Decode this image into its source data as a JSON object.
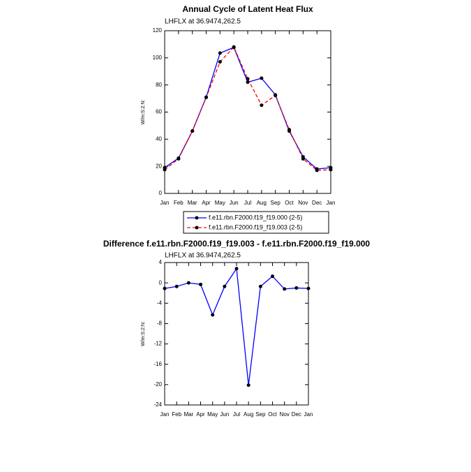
{
  "chart_data": [
    {
      "type": "line",
      "title": "Annual Cycle of Latent Heat Flux",
      "subtitle": "LHFLX at 36.9474,262.5",
      "ylabel": "W/m:S:2:N:",
      "categories": [
        "Jan",
        "Feb",
        "Mar",
        "Apr",
        "May",
        "Jun",
        "Jul",
        "Aug",
        "Sep",
        "Oct",
        "Nov",
        "Dec",
        "Jan"
      ],
      "series": [
        {
          "name": "f.e11.rbn.F2000.f19_f19.000 (2-5)",
          "color": "#0000ff",
          "dash": false,
          "values": [
            19,
            26,
            46,
            71,
            103.5,
            107.7,
            82,
            85,
            72.7,
            46,
            27,
            18,
            19
          ]
        },
        {
          "name": "f.e11.rbn.F2000.f19_f19.003 (2-5)",
          "color": "#ff0000",
          "dash": true,
          "values": [
            17.5,
            25.5,
            46,
            70.8,
            97,
            108,
            84.5,
            65,
            72.2,
            47,
            25.5,
            17,
            17.5
          ]
        }
      ],
      "ylim": [
        0,
        120
      ],
      "yticks": [
        0,
        20,
        40,
        60,
        80,
        100,
        120
      ],
      "legend": "below"
    },
    {
      "type": "line",
      "title": "Difference f.e11.rbn.F2000.f19_f19.003 - f.e11.rbn.F2000.f19_f19.000",
      "subtitle": "LHFLX at 36.9474,262.5",
      "ylabel": "W/m:S:2:N:",
      "categories": [
        "Jan",
        "Feb",
        "Mar",
        "Apr",
        "May",
        "Jun",
        "Jul",
        "Aug",
        "Sep",
        "Oct",
        "Nov",
        "Dec",
        "Jan"
      ],
      "series": [
        {
          "color": "#0000ff",
          "dash": false,
          "values": [
            -1.1,
            -0.7,
            0,
            -0.3,
            -6.3,
            -0.7,
            2.8,
            -20.1,
            -0.7,
            1.3,
            -1.2,
            -1,
            -1.1
          ]
        }
      ],
      "ylim": [
        -24,
        4
      ],
      "yticks": [
        4,
        0,
        -4,
        -8,
        -12,
        -16,
        -20,
        -24
      ]
    }
  ]
}
